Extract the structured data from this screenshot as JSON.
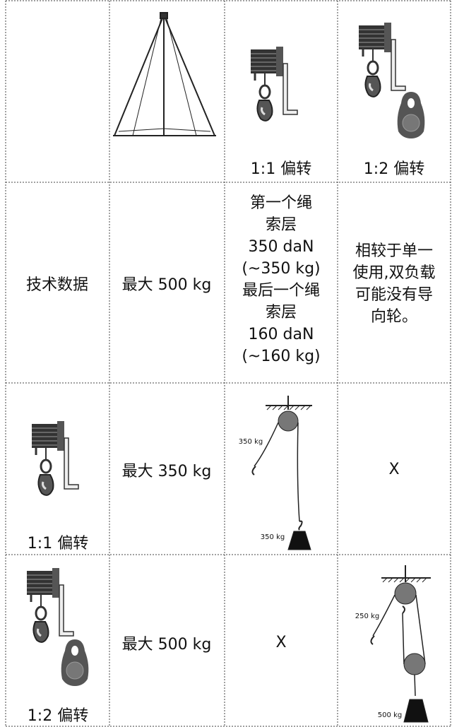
{
  "header": {
    "deflection_1_1": "1:1 偏转",
    "deflection_1_2": "1:2 偏转"
  },
  "specs": {
    "label": "技术数据",
    "max_load": "最大 500 kg",
    "rope_layers": [
      "第一个绳",
      "索层",
      "350 daN",
      "(~350 kg)",
      "最后一个绳",
      "索层",
      "160 daN",
      "(~160 kg)"
    ],
    "double_load_note": [
      "相较于单一",
      "使用,双负载",
      "可能没有导",
      "向轮。"
    ]
  },
  "row_1_1": {
    "label": "1:1 偏转",
    "max_load": "最大 350 kg",
    "diagram_labels": [
      "350 kg",
      "350 kg"
    ],
    "unavailable": "X"
  },
  "row_1_2": {
    "label": "1:2 偏转",
    "max_load": "最大 500 kg",
    "unavailable": "X",
    "diagram_labels": [
      "250 kg",
      "500 kg"
    ]
  }
}
